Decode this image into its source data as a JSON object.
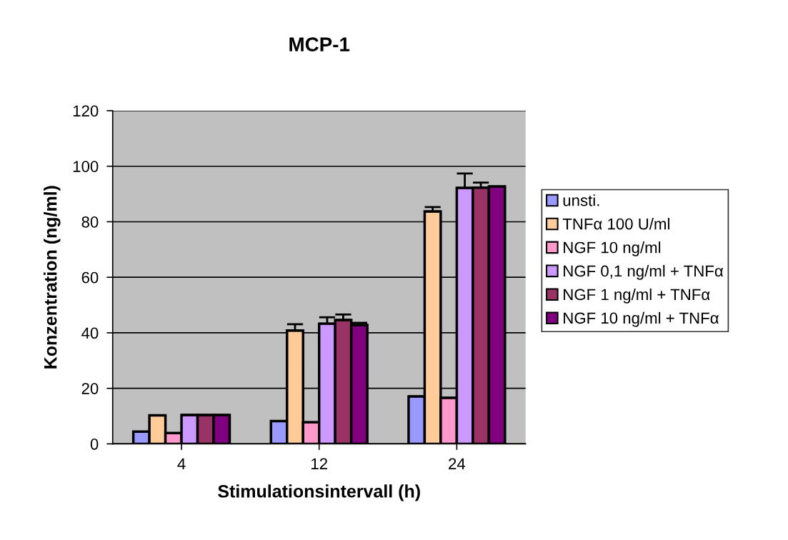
{
  "chart_data": {
    "type": "bar",
    "title": "MCP-1",
    "xlabel": "Stimulationsintervall (h)",
    "ylabel": "Konzentration (ng/ml)",
    "categories": [
      "4",
      "12",
      "24"
    ],
    "series": [
      {
        "name": "unsti.",
        "color": "#9999ff",
        "values": [
          4.4,
          8.2,
          17.1
        ],
        "errors": [
          null,
          null,
          null
        ]
      },
      {
        "name": "TNFα 100 U/ml",
        "color": "#ffcc99",
        "values": [
          10.3,
          40.8,
          83.7
        ],
        "errors": [
          null,
          2.3,
          1.6
        ]
      },
      {
        "name": "NGF 10 ng/ml",
        "color": "#ff99cc",
        "values": [
          3.9,
          7.8,
          16.6
        ],
        "errors": [
          null,
          null,
          null
        ]
      },
      {
        "name": "NGF 0,1 ng/ml + TNFα",
        "color": "#cc99ff",
        "values": [
          10.4,
          43.3,
          92.2
        ],
        "errors": [
          null,
          2.3,
          5.2
        ]
      },
      {
        "name": "NGF 1 ng/ml + TNFα",
        "color": "#993366",
        "values": [
          10.4,
          44.6,
          92.3
        ],
        "errors": [
          null,
          2.0,
          1.8
        ]
      },
      {
        "name": "NGF 10 ng/ml + TNFα",
        "color": "#800080",
        "values": [
          10.4,
          42.8,
          92.7
        ],
        "errors": [
          null,
          0.8,
          null
        ]
      }
    ],
    "ylim": [
      0,
      120
    ],
    "yticks": [
      0,
      20,
      40,
      60,
      80,
      100,
      120
    ],
    "grid": "y",
    "legend": "right"
  }
}
